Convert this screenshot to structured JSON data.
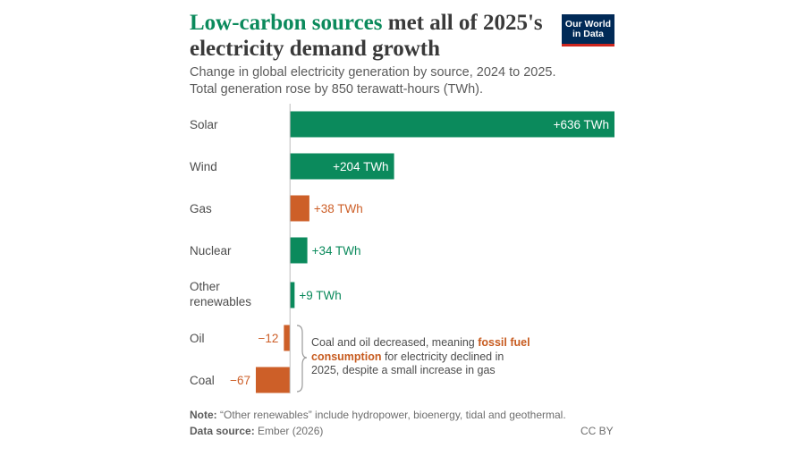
{
  "header": {
    "title_highlight": "Low-carbon sources",
    "title_rest": " met all of 2025's electricity demand growth",
    "subtitle_line1": "Change in global electricity generation by source, 2024 to 2025.",
    "subtitle_line2": "Total generation rose by 850 terawatt-hours (TWh).",
    "logo_line1": "Our World",
    "logo_line2": "in Data"
  },
  "colors": {
    "low_carbon": "#0b8a5c",
    "fossil": "#cd5f28",
    "title_highlight": "#0b8a5c",
    "logo_bg": "#012a57",
    "logo_accent": "#ce261e"
  },
  "chart_data": {
    "type": "bar",
    "orientation": "horizontal",
    "unit": "TWh",
    "categories": [
      "Solar",
      "Wind",
      "Gas",
      "Nuclear",
      "Other renewables",
      "Oil",
      "Coal"
    ],
    "values": [
      636,
      204,
      38,
      34,
      9,
      -12,
      -67
    ],
    "value_labels": [
      "+636 TWh",
      "+204 TWh",
      "+38 TWh",
      "+34 TWh",
      "+9 TWh",
      "−12",
      "−67"
    ],
    "groups": [
      "low_carbon",
      "low_carbon",
      "fossil",
      "low_carbon",
      "low_carbon",
      "fossil",
      "fossil"
    ],
    "xlim": [
      -67,
      636
    ],
    "grid": false,
    "legend": "none"
  },
  "annotation": {
    "text_before": "Coal and oil decreased, meaning ",
    "highlight": "fossil fuel consumption",
    "text_after": " for electricity declined in 2025, despite a small increase in gas"
  },
  "footer": {
    "note_label": "Note:",
    "note_text": " “Other renewables” include hydropower, bioenergy, tidal and geothermal.",
    "source_label": "Data source:",
    "source_text": " Ember (2026)",
    "license": "CC BY"
  }
}
